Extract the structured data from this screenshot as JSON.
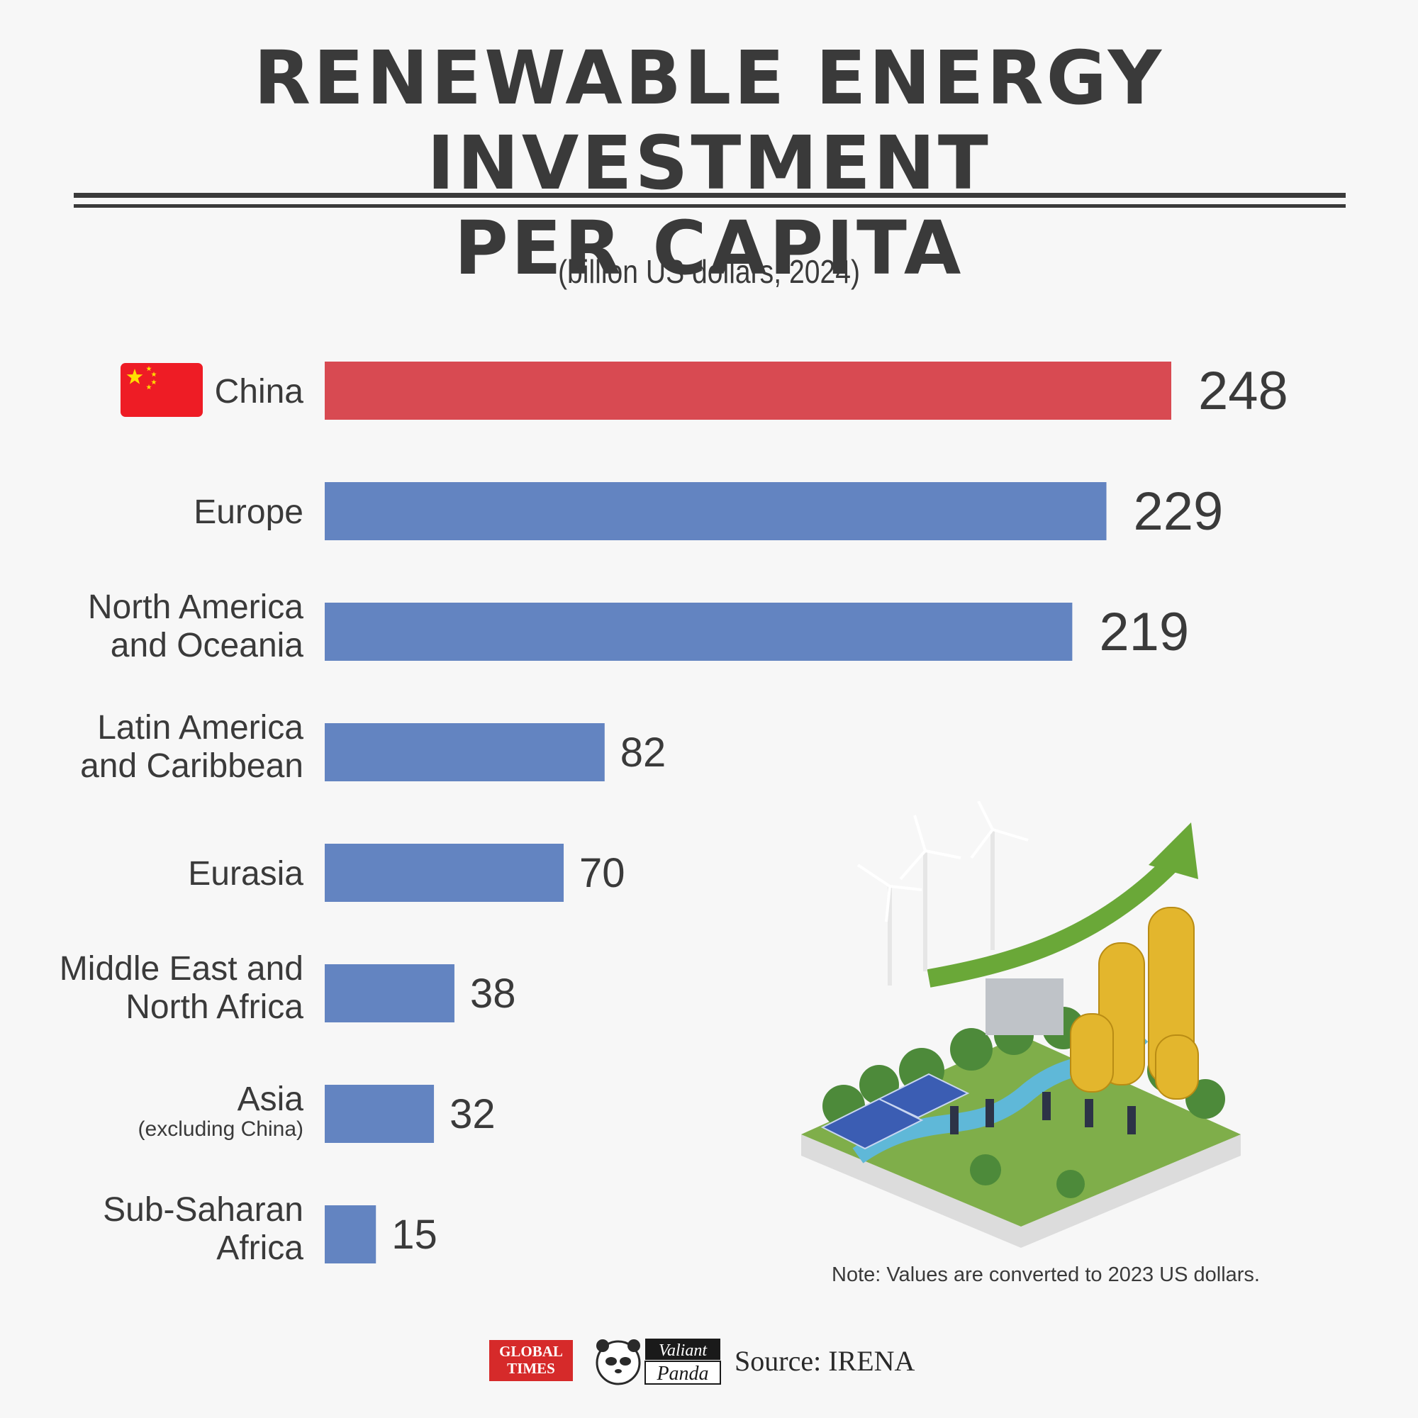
{
  "header": {
    "title_line1": "RENEWABLE ENERGY INVESTMENT",
    "title_line2": "PER CAPITA",
    "subtitle": "(billion US dollars, 2024)"
  },
  "chart_data": {
    "type": "bar",
    "orientation": "horizontal",
    "title": "RENEWABLE ENERGY INVESTMENT PER CAPITA",
    "subtitle": "(billion US dollars, 2024)",
    "categories": [
      "China",
      "Europe",
      "North America and Oceania",
      "Latin America and Caribbean",
      "Eurasia",
      "Middle East and North Africa",
      "Asia (excluding China)",
      "Sub-Saharan Africa"
    ],
    "category_lines": [
      [
        "China"
      ],
      [
        "Europe"
      ],
      [
        "North America",
        "and Oceania"
      ],
      [
        "Latin America",
        "and Caribbean"
      ],
      [
        "Eurasia"
      ],
      [
        "Middle East and",
        "North Africa"
      ],
      [
        "Asia"
      ],
      [
        "Sub-Saharan",
        "Africa"
      ]
    ],
    "category_sublabels": [
      "",
      "",
      "",
      "",
      "",
      "",
      "(excluding China)",
      ""
    ],
    "values": [
      248,
      229,
      219,
      82,
      70,
      38,
      32,
      15
    ],
    "bar_colors": [
      "#d84a52",
      "#6384c1",
      "#6384c1",
      "#6384c1",
      "#6384c1",
      "#6384c1",
      "#6384c1",
      "#6384c1"
    ],
    "highlight_flag": "china-flag",
    "xlim": [
      0,
      248
    ],
    "grid": false,
    "xlabel": "",
    "ylabel": ""
  },
  "note": "Note: Values are converted to 2023 US dollars.",
  "footer": {
    "logo1_line1": "GLOBAL",
    "logo1_line2": "TIMES",
    "logo2_line1": "Valiant",
    "logo2_line2": "Panda",
    "source": "Source: IRENA"
  },
  "colors": {
    "highlight": "#d84a52",
    "bar": "#6384c1",
    "text": "#3a3a3a",
    "background": "#f7f7f7"
  },
  "icons": [
    "china-flag-icon",
    "renewable-investment-illustration",
    "panda-icon"
  ]
}
